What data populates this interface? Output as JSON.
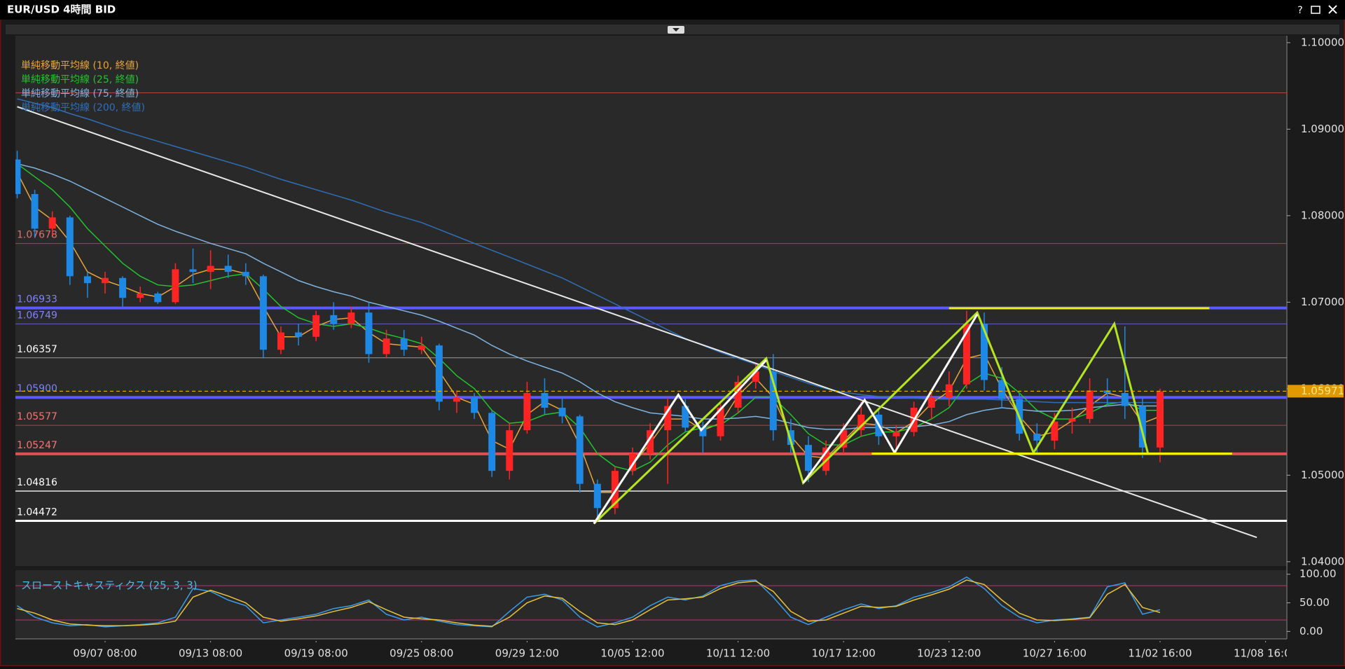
{
  "window": {
    "title": "EUR/USD 4時間 BID",
    "help_button": "?"
  },
  "chart_data": {
    "type": "candlestick",
    "categories": [
      null,
      null,
      null,
      null,
      null,
      "09/07 08:00",
      null,
      null,
      null,
      null,
      null,
      "09/13 08:00",
      null,
      null,
      null,
      null,
      null,
      "09/19 08:00",
      null,
      null,
      null,
      null,
      null,
      "09/25 08:00",
      null,
      null,
      null,
      null,
      null,
      "09/29 12:00",
      null,
      null,
      null,
      null,
      null,
      "10/05 12:00",
      null,
      null,
      null,
      null,
      null,
      "10/11 12:00",
      null,
      null,
      null,
      null,
      null,
      "10/17 12:00",
      null,
      null,
      null,
      null,
      null,
      "10/23 12:00",
      null,
      null,
      null,
      null,
      null,
      "10/27 16:00",
      null,
      null,
      null,
      null,
      null,
      "11/02 16:00",
      null,
      null,
      null,
      null,
      null,
      "11/08 16:00",
      null
    ],
    "open": [
      1.0865,
      1.0825,
      1.0785,
      1.0798,
      1.073,
      1.0722,
      1.0728,
      1.0705,
      1.071,
      1.07,
      1.0738,
      1.0735,
      1.0742,
      1.0735,
      1.073,
      1.0645,
      1.0665,
      1.066,
      1.0685,
      1.0675,
      1.0688,
      1.064,
      1.0658,
      1.0645,
      1.065,
      1.0585,
      1.059,
      1.0572,
      1.0505,
      1.0552,
      1.0595,
      1.0578,
      1.0568,
      1.049,
      1.0462,
      1.0505,
      1.0525,
      1.0552,
      1.058,
      1.0555,
      1.0545,
      1.0578,
      1.0608,
      1.062,
      1.0552,
      1.0535,
      1.0505,
      1.0532,
      1.0552,
      1.057,
      1.0545,
      1.055,
      1.0578,
      1.059,
      1.0605,
      1.0675,
      1.061,
      1.0588,
      1.0548,
      1.054,
      1.0562,
      1.0565,
      1.0598,
      1.0595,
      1.058,
      1.0532,
      null,
      null,
      null,
      null,
      null,
      null,
      null
    ],
    "high": [
      1.0875,
      1.083,
      1.0805,
      1.08,
      1.0735,
      1.0735,
      1.073,
      1.0718,
      1.0712,
      1.0745,
      1.0762,
      1.076,
      1.0755,
      1.0745,
      1.0732,
      1.0672,
      1.0675,
      1.069,
      1.07,
      1.0695,
      1.07,
      1.0668,
      1.0668,
      1.066,
      1.0652,
      1.0598,
      1.0595,
      1.0575,
      1.056,
      1.0608,
      1.0612,
      1.059,
      1.057,
      1.0495,
      1.051,
      1.0532,
      1.056,
      1.059,
      1.0588,
      1.0562,
      1.0585,
      1.0615,
      1.063,
      1.064,
      1.0565,
      1.0545,
      1.054,
      1.056,
      1.0585,
      1.0575,
      1.0558,
      1.0585,
      1.0598,
      1.062,
      1.069,
      1.0688,
      1.0625,
      1.0595,
      1.056,
      1.0572,
      1.0578,
      1.0612,
      1.0612,
      1.0672,
      1.059,
      1.06,
      null,
      null,
      null,
      null,
      null,
      null,
      null
    ],
    "low": [
      1.082,
      1.0775,
      1.0778,
      1.072,
      1.0705,
      1.071,
      1.0695,
      1.07,
      1.0698,
      1.0698,
      1.0722,
      1.0715,
      1.0728,
      1.072,
      1.0635,
      1.064,
      1.065,
      1.0655,
      1.0668,
      1.067,
      1.063,
      1.0635,
      1.0638,
      1.064,
      1.0575,
      1.0572,
      1.0565,
      1.0498,
      1.0495,
      1.0548,
      1.057,
      1.056,
      1.048,
      1.045,
      1.0455,
      1.05,
      1.0518,
      1.049,
      1.055,
      1.0525,
      1.054,
      1.0572,
      1.06,
      1.054,
      1.0525,
      1.0492,
      1.05,
      1.0525,
      1.0545,
      1.0535,
      1.0525,
      1.0545,
      1.0565,
      1.058,
      1.06,
      1.0598,
      1.0578,
      1.054,
      1.0525,
      1.053,
      1.0548,
      1.056,
      1.058,
      1.0565,
      1.052,
      1.0515,
      null,
      null,
      null,
      null,
      null,
      null,
      null
    ],
    "close": [
      1.0825,
      1.0785,
      1.0798,
      1.073,
      1.0722,
      1.0728,
      1.0705,
      1.071,
      1.07,
      1.0738,
      1.0735,
      1.0742,
      1.0735,
      1.073,
      1.0645,
      1.0665,
      1.066,
      1.0685,
      1.0675,
      1.0688,
      1.064,
      1.0658,
      1.0645,
      1.065,
      1.0585,
      1.059,
      1.0572,
      1.0505,
      1.0552,
      1.0595,
      1.0578,
      1.0568,
      1.049,
      1.0462,
      1.0505,
      1.0525,
      1.0552,
      1.058,
      1.0555,
      1.0545,
      1.0578,
      1.0608,
      1.062,
      1.0552,
      1.0535,
      1.0505,
      1.0532,
      1.0552,
      1.057,
      1.0545,
      1.055,
      1.0578,
      1.059,
      1.0605,
      1.0675,
      1.061,
      1.0588,
      1.0548,
      1.054,
      1.0562,
      1.0565,
      1.0598,
      1.0595,
      1.058,
      1.0532,
      1.0597,
      null,
      null,
      null,
      null,
      null,
      null,
      null
    ],
    "up_color": "#ff2424",
    "down_color": "#1e88e5",
    "series": [
      {
        "name": "単純移動平均線 (10, 終値)",
        "color": "#e8a33a",
        "values": [
          1.085,
          1.081,
          1.0795,
          1.077,
          1.0735,
          1.0725,
          1.0718,
          1.071,
          1.0706,
          1.0718,
          1.0732,
          1.0738,
          1.0738,
          1.0733,
          1.0695,
          1.066,
          1.066,
          1.0672,
          1.068,
          1.0682,
          1.0665,
          1.0652,
          1.065,
          1.0648,
          1.062,
          1.059,
          1.0582,
          1.054,
          1.053,
          1.057,
          1.0585,
          1.0575,
          1.0535,
          1.048,
          1.048,
          1.0512,
          1.0537,
          1.0565,
          1.0565,
          1.0552,
          1.056,
          1.0592,
          1.0612,
          1.059,
          1.0545,
          1.0522,
          1.052,
          1.054,
          1.056,
          1.0558,
          1.0549,
          1.0562,
          1.0583,
          1.0597,
          1.0635,
          1.064,
          1.06,
          1.0568,
          1.0545,
          1.055,
          1.0563,
          1.058,
          1.0595,
          1.059,
          1.056,
          1.0568,
          null,
          null,
          null,
          null,
          null,
          null,
          null
        ]
      },
      {
        "name": "単純移動平均線 (25, 終値)",
        "color": "#22c32e",
        "values": [
          1.086,
          1.0845,
          1.083,
          1.081,
          1.0785,
          1.0765,
          1.0745,
          1.073,
          1.072,
          1.0718,
          1.072,
          1.0725,
          1.073,
          1.0733,
          1.0715,
          1.0695,
          1.0682,
          1.0675,
          1.0672,
          1.0675,
          1.067,
          1.0663,
          1.0658,
          1.0652,
          1.0635,
          1.0615,
          1.06,
          1.0575,
          1.056,
          1.0562,
          1.057,
          1.0573,
          1.0555,
          1.0525,
          1.051,
          1.0505,
          1.0515,
          1.0535,
          1.055,
          1.0555,
          1.0558,
          1.0572,
          1.059,
          1.059,
          1.057,
          1.0548,
          1.0535,
          1.0535,
          1.0545,
          1.055,
          1.055,
          1.0555,
          1.0565,
          1.0578,
          1.0605,
          1.0618,
          1.0612,
          1.0595,
          1.0575,
          1.0565,
          1.0565,
          1.0572,
          1.0582,
          1.0585,
          1.0575,
          1.0575,
          null,
          null,
          null,
          null,
          null,
          null,
          null
        ]
      },
      {
        "name": "単純移動平均線 (75, 終値)",
        "color": "#7fb3e0",
        "values": [
          1.086,
          1.0855,
          1.0848,
          1.084,
          1.083,
          1.082,
          1.081,
          1.08,
          1.079,
          1.0782,
          1.0775,
          1.0768,
          1.0762,
          1.0756,
          1.0745,
          1.0735,
          1.0725,
          1.0718,
          1.0712,
          1.0707,
          1.07,
          1.0695,
          1.069,
          1.0685,
          1.0678,
          1.067,
          1.0662,
          1.065,
          1.064,
          1.0632,
          1.0625,
          1.0618,
          1.0608,
          1.0595,
          1.0585,
          1.0578,
          1.0572,
          1.057,
          1.0568,
          1.0565,
          1.0565,
          1.0566,
          1.0568,
          1.0565,
          1.056,
          1.0555,
          1.0553,
          1.0553,
          1.0555,
          1.0555,
          1.0555,
          1.0556,
          1.0558,
          1.0562,
          1.057,
          1.0575,
          1.0578,
          1.0576,
          1.0574,
          1.0574,
          1.0575,
          1.0578,
          1.058,
          1.0582,
          1.058,
          1.058,
          null,
          null,
          null,
          null,
          null,
          null,
          null
        ]
      },
      {
        "name": "単純移動平均線 (200, 終値)",
        "color": "#2f6fb8",
        "values": [
          1.0935,
          1.093,
          1.0925,
          1.0918,
          1.0912,
          1.0905,
          1.0898,
          1.0892,
          1.0886,
          1.088,
          1.0874,
          1.0868,
          1.0862,
          1.0856,
          1.0849,
          1.0842,
          1.0836,
          1.083,
          1.0824,
          1.0818,
          1.0811,
          1.0804,
          1.0798,
          1.0792,
          1.0784,
          1.0776,
          1.0768,
          1.076,
          1.0752,
          1.0744,
          1.0736,
          1.0728,
          1.0718,
          1.0708,
          1.0698,
          1.0688,
          1.0678,
          1.0668,
          1.0658,
          1.065,
          1.0642,
          1.0635,
          1.0628,
          1.062,
          1.0613,
          1.0606,
          1.06,
          1.0596,
          1.0593,
          1.0591,
          1.059,
          1.0589,
          1.0588,
          1.0588,
          1.0588,
          1.0588,
          1.0587,
          1.0586,
          1.0585,
          1.0584,
          1.0584,
          1.0584,
          1.0584,
          1.0584,
          1.0584,
          1.0584,
          null,
          null,
          null,
          null,
          null,
          null,
          null
        ]
      }
    ],
    "ylim": [
      1.0395,
      1.1008
    ],
    "yticks": [
      {
        "value": 1.1,
        "label": "1.10000"
      },
      {
        "value": 1.09,
        "label": "1.09000"
      },
      {
        "value": 1.08,
        "label": "1.08000"
      },
      {
        "value": 1.07,
        "label": "1.07000"
      },
      {
        "value": 1.06,
        "label": "1.06000"
      },
      {
        "value": 1.05,
        "label": "1.05000"
      },
      {
        "value": 1.04,
        "label": "1.04000"
      }
    ],
    "levels": [
      {
        "value": 1.0942,
        "color": "#b04545",
        "width": 1
      },
      {
        "value": 1.07678,
        "label": "1.07678",
        "color": "#b04545",
        "label_color": "#e07070",
        "width": 1
      },
      {
        "value": 1.06933,
        "label": "1.06933",
        "color": "#5a5aff",
        "label_color": "#8080ff",
        "width": 4
      },
      {
        "value": 1.06749,
        "label": "1.06749",
        "color": "#6060c8",
        "label_color": "#8080ff",
        "width": 1
      },
      {
        "value": 1.06357,
        "label": "1.06357",
        "color": "#9a9a9a",
        "label_color": "#ffffff",
        "width": 1
      },
      {
        "value": 1.059,
        "label": "1.05900",
        "color": "#5a5aff",
        "label_color": "#8080ff",
        "width": 4
      },
      {
        "value": 1.05577,
        "label": "1.05577",
        "color": "#b04545",
        "label_color": "#ff7070",
        "width": 1
      },
      {
        "value": 1.05247,
        "label": "1.05247",
        "color": "#e05050",
        "label_color": "#ff7070",
        "width": 4
      },
      {
        "value": 1.04816,
        "label": "1.04816",
        "color": "#b8b8b8",
        "label_color": "#ffffff",
        "width": 2
      },
      {
        "value": 1.04472,
        "label": "1.04472",
        "color": "#ffffff",
        "label_color": "#ffffff",
        "width": 3
      }
    ],
    "current_price": 1.05971,
    "drawings": [
      {
        "color": "#e8e8e8",
        "width": 2,
        "points": [
          [
            0,
            1.0926
          ],
          [
            70.5,
            1.0428
          ]
        ]
      },
      {
        "color": "#b5e61d",
        "width": 3,
        "points": [
          [
            32.8,
            1.0444
          ],
          [
            42.6,
            1.0635
          ],
          [
            44.7,
            1.0491
          ],
          [
            54.6,
            1.0688
          ],
          [
            57.8,
            1.0526
          ],
          [
            62.4,
            1.0675
          ],
          [
            64.3,
            1.0526
          ]
        ]
      },
      {
        "color": "#ffffff",
        "width": 3,
        "points": [
          [
            32.8,
            1.0444
          ],
          [
            37.6,
            1.0593
          ],
          [
            38.9,
            1.0552
          ],
          [
            42.6,
            1.0633
          ]
        ]
      },
      {
        "color": "#ffffff",
        "width": 3,
        "points": [
          [
            44.7,
            1.0491
          ],
          [
            48.2,
            1.0587
          ],
          [
            49.9,
            1.0526
          ],
          [
            54.6,
            1.0686
          ]
        ]
      },
      {
        "color": "#f0f000",
        "width": 3,
        "points": [
          [
            53.0,
            1.0693
          ],
          [
            67.8,
            1.0693
          ]
        ]
      },
      {
        "color": "#f0f000",
        "width": 3,
        "points": [
          [
            48.6,
            1.0525
          ],
          [
            69.1,
            1.0525
          ]
        ]
      }
    ],
    "stochastic": {
      "label": "スローストキャスティクス (25, 3, 3)",
      "ylim": [
        -13,
        107
      ],
      "yticks": [
        {
          "value": 100,
          "label": "100.00"
        },
        {
          "value": 50,
          "label": "50.00"
        },
        {
          "value": 0,
          "label": "0.00"
        }
      ],
      "levels": [
        80,
        20
      ],
      "level_color": "#b0306a",
      "series": [
        {
          "color": "#3b9be8",
          "values": [
            45,
            25,
            15,
            10,
            12,
            8,
            10,
            12,
            15,
            25,
            75,
            70,
            55,
            45,
            15,
            20,
            25,
            30,
            40,
            45,
            55,
            30,
            20,
            25,
            18,
            12,
            10,
            8,
            35,
            60,
            65,
            55,
            25,
            8,
            15,
            25,
            45,
            60,
            55,
            62,
            80,
            88,
            90,
            60,
            25,
            12,
            25,
            38,
            48,
            40,
            45,
            60,
            68,
            78,
            95,
            75,
            45,
            25,
            15,
            20,
            22,
            25,
            78,
            85,
            30,
            38,
            null,
            null,
            null,
            null,
            null,
            null,
            null
          ]
        },
        {
          "color": "#e8c23a",
          "values": [
            40,
            32,
            20,
            13,
            11,
            10,
            10,
            11,
            13,
            18,
            60,
            72,
            62,
            50,
            25,
            18,
            22,
            27,
            35,
            42,
            52,
            38,
            25,
            22,
            20,
            15,
            11,
            9,
            25,
            50,
            62,
            58,
            35,
            15,
            12,
            20,
            38,
            55,
            57,
            60,
            75,
            85,
            88,
            70,
            35,
            18,
            20,
            32,
            44,
            42,
            44,
            55,
            64,
            74,
            90,
            82,
            55,
            32,
            20,
            19,
            21,
            24,
            65,
            82,
            42,
            33,
            null,
            null,
            null,
            null,
            null,
            null,
            null
          ]
        }
      ]
    }
  }
}
